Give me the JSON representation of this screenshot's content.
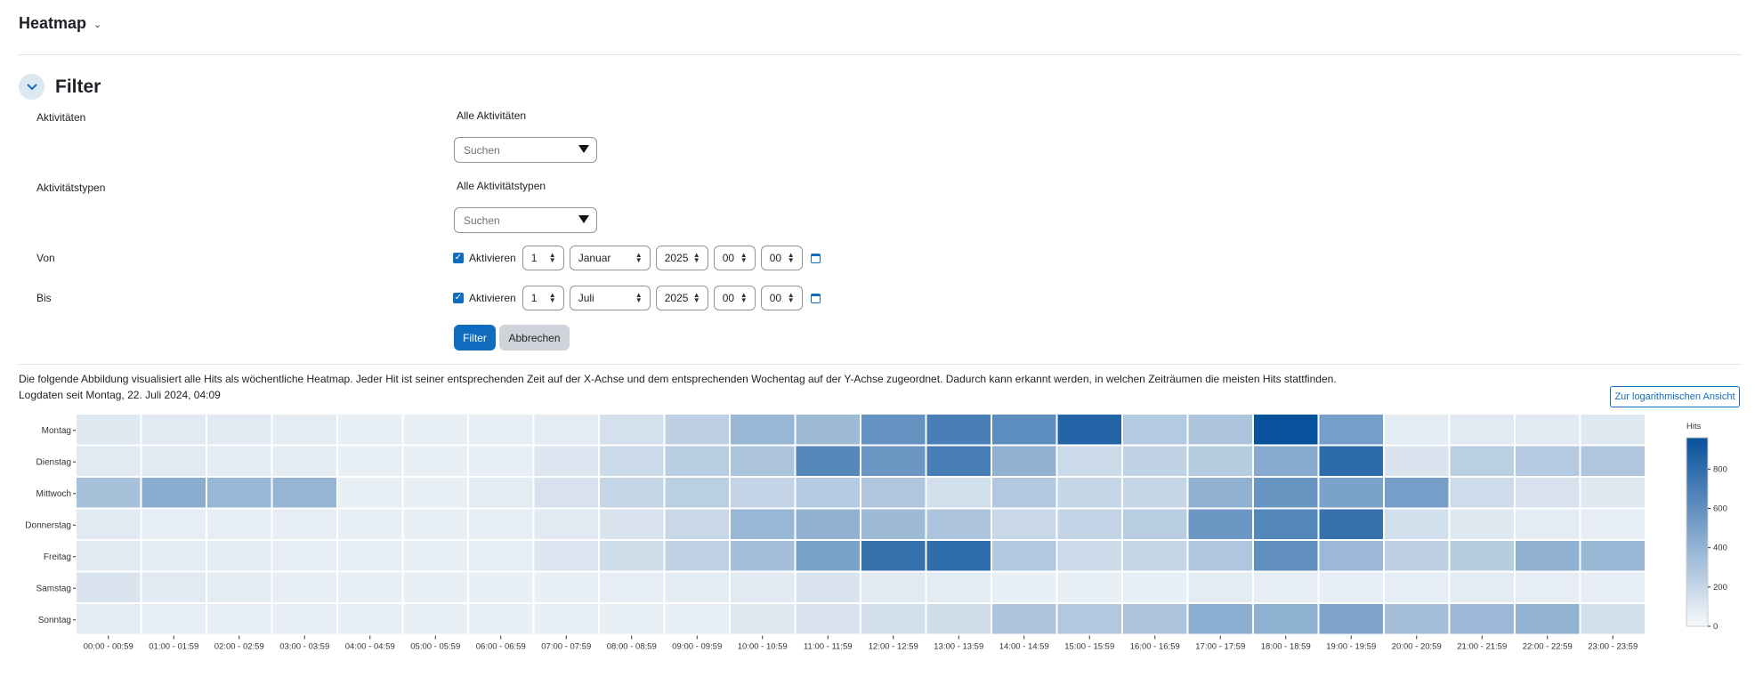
{
  "header": {
    "title": "Heatmap"
  },
  "filter": {
    "title": "Filter",
    "activities": {
      "label": "Aktivitäten",
      "value": "Alle Aktivitäten",
      "placeholder": "Suchen"
    },
    "activity_types": {
      "label": "Aktivitätstypen",
      "value": "Alle Aktivitätstypen",
      "placeholder": "Suchen"
    },
    "from": {
      "label": "Von",
      "enable_label": "Aktivieren",
      "enabled": true,
      "day": "1",
      "month": "Januar",
      "year": "2025",
      "hour": "00",
      "minute": "00"
    },
    "to": {
      "label": "Bis",
      "enable_label": "Aktivieren",
      "enabled": true,
      "day": "1",
      "month": "Juli",
      "year": "2025",
      "hour": "00",
      "minute": "00"
    },
    "submit_label": "Filter",
    "cancel_label": "Abbrechen"
  },
  "description": "Die folgende Abbildung visualisiert alle Hits als wöchentliche Heatmap. Jeder Hit ist seiner entsprechenden Zeit auf der X-Achse und dem entsprechenden Wochentag auf der Y-Achse zugeordnet. Dadurch kann erkannt werden, in welchen Zeiträumen die meisten Hits stattfinden.",
  "logdate": "Logdaten seit Montag, 22. Juli 2024, 04:09",
  "log_view_button": "Zur logarithmischen Ansicht",
  "colors": {
    "accent": "#0f6cbf",
    "heat_low": "#f7f9fb",
    "heat_high": "#08519c"
  },
  "chart_data": {
    "type": "heatmap",
    "x": [
      "00:00 - 00:59",
      "01:00 - 01:59",
      "02:00 - 02:59",
      "03:00 - 03:59",
      "04:00 - 04:59",
      "05:00 - 05:59",
      "06:00 - 06:59",
      "07:00 - 07:59",
      "08:00 - 08:59",
      "09:00 - 09:59",
      "10:00 - 10:59",
      "11:00 - 11:59",
      "12:00 - 12:59",
      "13:00 - 13:59",
      "14:00 - 14:59",
      "15:00 - 15:59",
      "16:00 - 16:59",
      "17:00 - 17:59",
      "18:00 - 18:59",
      "19:00 - 19:59",
      "20:00 - 20:59",
      "21:00 - 21:59",
      "22:00 - 22:59",
      "23:00 - 23:59"
    ],
    "y": [
      "Montag",
      "Dienstag",
      "Mittwoch",
      "Donnerstag",
      "Freitag",
      "Samstag",
      "Sonntag"
    ],
    "values": [
      [
        100,
        90,
        90,
        80,
        60,
        60,
        70,
        80,
        140,
        230,
        380,
        360,
        590,
        700,
        620,
        850,
        270,
        300,
        960,
        520,
        80,
        90,
        90,
        100
      ],
      [
        90,
        90,
        80,
        80,
        60,
        60,
        70,
        110,
        180,
        250,
        300,
        650,
        560,
        710,
        410,
        180,
        220,
        260,
        450,
        810,
        120,
        240,
        270,
        290
      ],
      [
        320,
        440,
        380,
        390,
        60,
        60,
        80,
        130,
        200,
        240,
        210,
        270,
        290,
        150,
        280,
        200,
        200,
        410,
        570,
        500,
        520,
        170,
        130,
        100
      ],
      [
        90,
        70,
        70,
        70,
        60,
        60,
        70,
        90,
        120,
        190,
        380,
        410,
        360,
        300,
        190,
        210,
        250,
        560,
        660,
        770,
        150,
        100,
        80,
        70
      ],
      [
        90,
        80,
        80,
        70,
        60,
        60,
        70,
        110,
        160,
        220,
        330,
        500,
        770,
        800,
        280,
        180,
        200,
        290,
        610,
        370,
        230,
        260,
        410,
        380
      ],
      [
        120,
        90,
        80,
        70,
        60,
        60,
        60,
        60,
        70,
        80,
        90,
        120,
        90,
        80,
        60,
        60,
        60,
        80,
        70,
        70,
        70,
        80,
        70,
        70
      ],
      [
        80,
        70,
        70,
        70,
        60,
        60,
        60,
        60,
        60,
        70,
        100,
        120,
        150,
        160,
        300,
        280,
        300,
        430,
        420,
        490,
        330,
        370,
        400,
        150
      ]
    ],
    "colorbar": {
      "title": "Hits",
      "ticks": [
        0,
        200,
        400,
        600,
        800
      ],
      "range": [
        0,
        960
      ]
    }
  }
}
